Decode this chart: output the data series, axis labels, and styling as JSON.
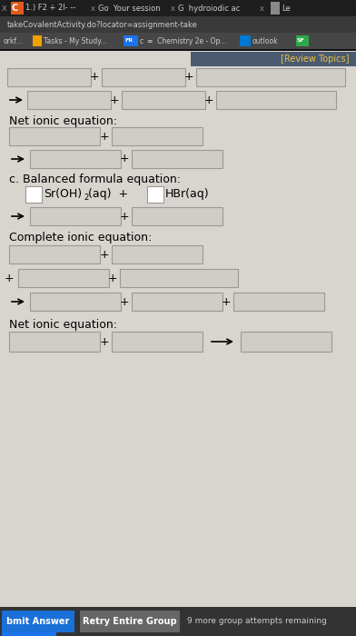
{
  "bg_top_texture": "#d4cfc8",
  "bg_content": "#d8d4ce",
  "content_bg": "#e2ddd8",
  "white": "#ffffff",
  "black": "#000000",
  "box_edge": "#aaaaaa",
  "review_topics_color": "#c8a020",
  "review_topics_bg": "#4a6080",
  "section_c_label": "c. Balanced formula equation:",
  "net_ionic_label": "Net ionic equation:",
  "complete_ionic_label": "Complete ionic equation:",
  "submit_btn_text": "bmit Answer",
  "submit_btn_color": "#1a6fd8",
  "retry_btn_text": "Retry Entire Group",
  "retry_btn_color": "#666666",
  "attempts_text": "9 more group attempts remaining",
  "bottom_bar_color": "#333333",
  "tab_bg": "#2a2a2a",
  "url_bg": "#3a3a3a",
  "bookmark_bg": "#4a4a4a",
  "blue_c_color": "#e8521a",
  "tab_text_color": "#dddddd",
  "url_text": "takeCovalentActivity.do?locator=assignment-take",
  "tab_divider": "#1a1a1a"
}
